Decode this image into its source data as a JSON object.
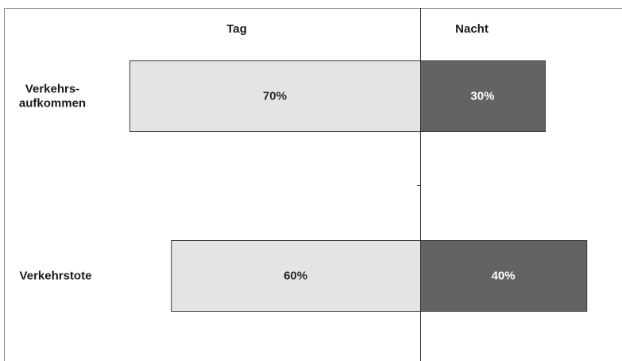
{
  "chart_data": {
    "type": "bar",
    "orientation": "horizontal",
    "stacking": "diverging",
    "categories": [
      "Verkehrs-\naufkommen",
      "Verkehrstote"
    ],
    "series": [
      {
        "name": "Tag",
        "values": [
          70,
          60
        ],
        "labels": [
          "70%",
          "60%"
        ],
        "color": "#e3e4e6",
        "text_color": "#2a2a2a"
      },
      {
        "name": "Nacht",
        "values": [
          30,
          40
        ],
        "labels": [
          "30%",
          "40%"
        ],
        "color": "#636363",
        "text_color": "#ffffff"
      }
    ],
    "unit": "%",
    "grid": false,
    "legend": "top (series names as column headers)"
  }
}
